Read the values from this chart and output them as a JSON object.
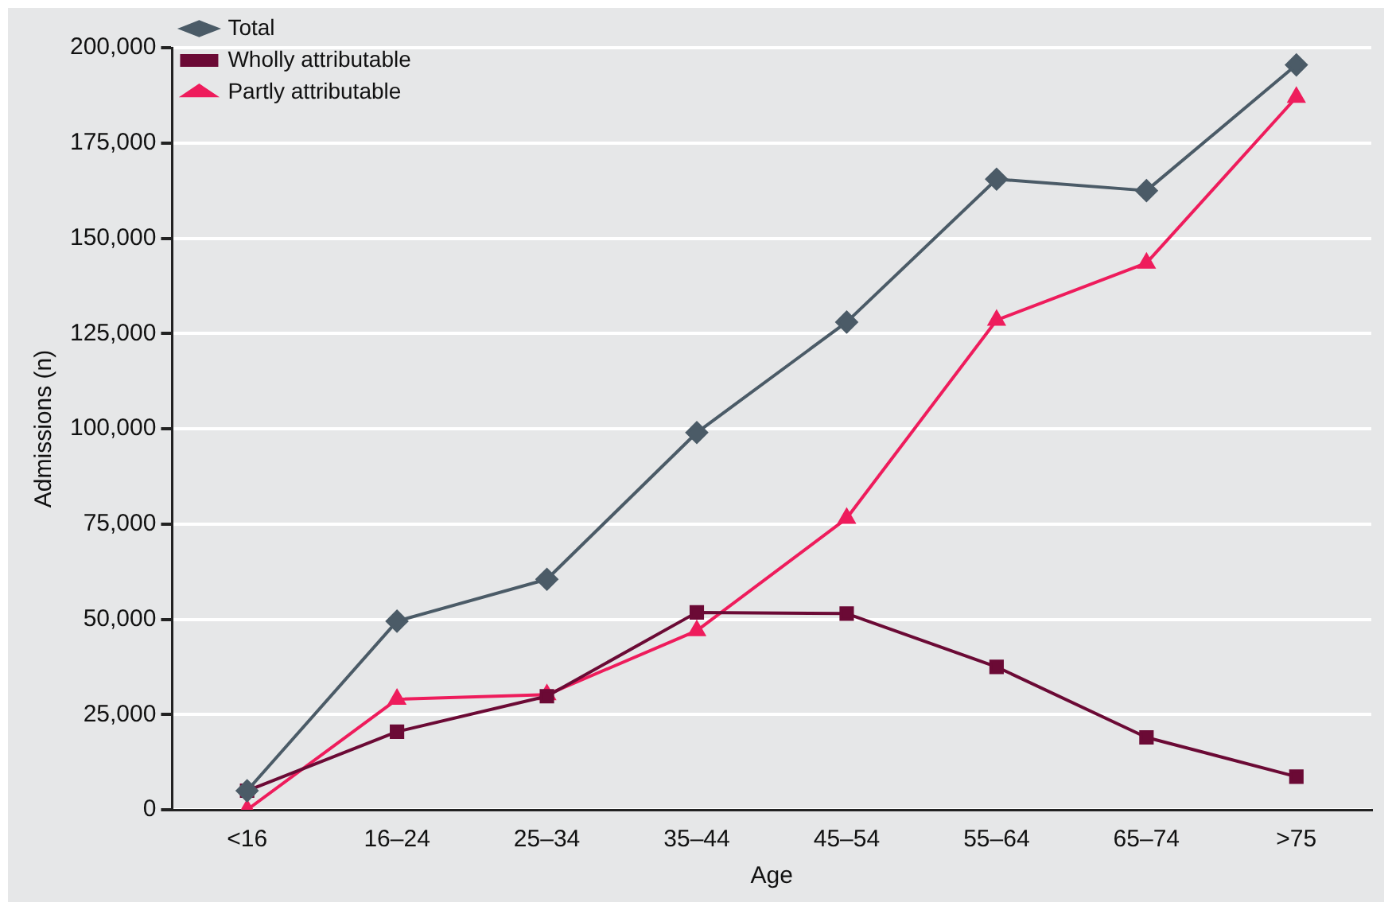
{
  "chart_data": {
    "type": "line",
    "xlabel": "Age",
    "ylabel": "Admissions (n)",
    "categories": [
      "<16",
      "16–24",
      "25–34",
      "35–44",
      "45–54",
      "55–64",
      "65–74",
      ">75"
    ],
    "series": [
      {
        "name": "Total",
        "color": "#4b5b67",
        "marker": "diamond",
        "values": [
          5000,
          49500,
          60500,
          99000,
          128000,
          165500,
          162500,
          195500
        ]
      },
      {
        "name": "Wholly attributable",
        "color": "#6b0a35",
        "marker": "square",
        "values": [
          5000,
          20500,
          29800,
          51800,
          51500,
          37500,
          19000,
          8700
        ]
      },
      {
        "name": "Partly attributable",
        "color": "#ee1c5c",
        "marker": "triangle",
        "values": [
          0,
          29000,
          30200,
          47000,
          76500,
          128500,
          143500,
          187000
        ]
      }
    ],
    "ylim": [
      0,
      200000
    ],
    "yticks": [
      {
        "value": 0,
        "label": "0"
      },
      {
        "value": 25000,
        "label": "25,000"
      },
      {
        "value": 50000,
        "label": "50,000"
      },
      {
        "value": 75000,
        "label": "75,000"
      },
      {
        "value": 100000,
        "label": "100,000"
      },
      {
        "value": 125000,
        "label": "125,000"
      },
      {
        "value": 150000,
        "label": "150,000"
      },
      {
        "value": 175000,
        "label": "175,000"
      },
      {
        "value": 200000,
        "label": "200,000"
      }
    ],
    "grid": "y",
    "legend": "top left",
    "line_style": "solid"
  }
}
